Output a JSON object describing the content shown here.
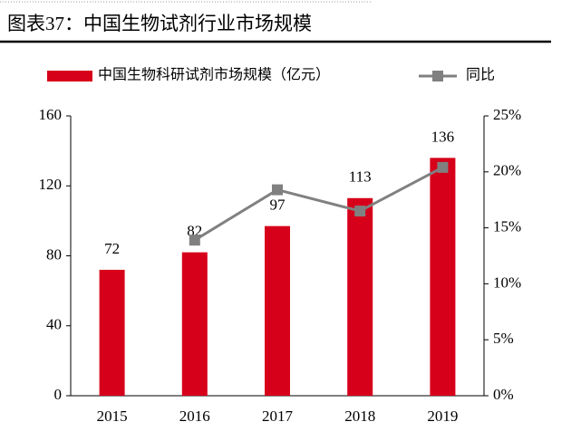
{
  "chart_data": {
    "type": "combo",
    "title": "图表37：中国生物试剂行业市场规模",
    "categories": [
      "2015",
      "2016",
      "2017",
      "2018",
      "2019"
    ],
    "series": [
      {
        "name": "中国生物科研试剂市场规模（亿元）",
        "type": "bar",
        "color": "#d7001a",
        "values": [
          72,
          82,
          97,
          113,
          136
        ]
      },
      {
        "name": "同比",
        "type": "line",
        "axis": "y2",
        "color": "#808080",
        "values": [
          null,
          13.9,
          18.4,
          16.5,
          20.4
        ]
      }
    ],
    "ylim": [
      0,
      160
    ],
    "yticks": [
      0,
      40,
      80,
      120,
      160
    ],
    "y2lim": [
      0,
      25
    ],
    "y2ticks": [
      {
        "value": 0,
        "label": "0%"
      },
      {
        "value": 5,
        "label": "5%"
      },
      {
        "value": 10,
        "label": "10%"
      },
      {
        "value": 15,
        "label": "15%"
      },
      {
        "value": 20,
        "label": "20%"
      },
      {
        "value": 25,
        "label": "25%"
      }
    ],
    "data_labels": true
  }
}
